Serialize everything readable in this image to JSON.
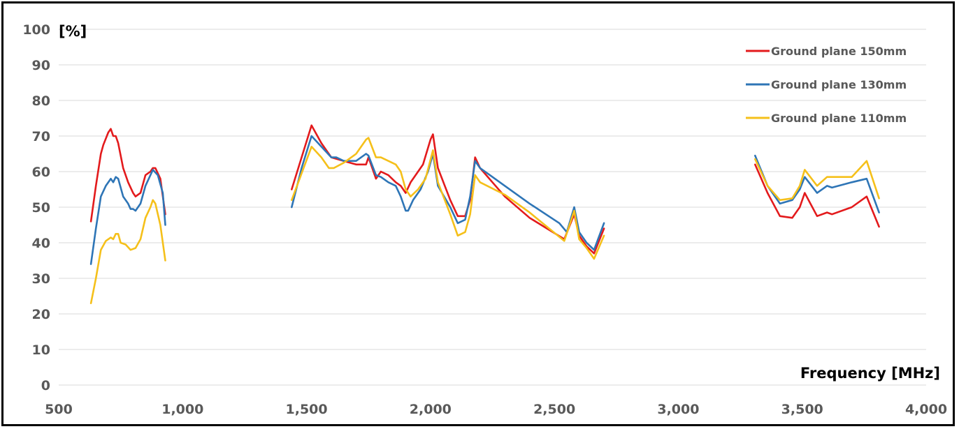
{
  "chart_data": {
    "type": "line",
    "title": "",
    "ylabel": "[%]",
    "xlabel": "Frequency  [MHz]",
    "xlim": [
      500,
      4000
    ],
    "ylim": [
      0,
      100
    ],
    "x_ticks": [
      500,
      1000,
      1500,
      2000,
      2500,
      3000,
      3500,
      4000
    ],
    "x_tick_labels": [
      "500",
      "1,000",
      "1,500",
      "2,000",
      "2,500",
      "3,000",
      "3,500",
      "4,000"
    ],
    "y_ticks": [
      0,
      10,
      20,
      30,
      40,
      50,
      60,
      70,
      80,
      90,
      100
    ],
    "y_tick_labels": [
      "0",
      "10",
      "20",
      "30",
      "40",
      "50",
      "60",
      "70",
      "80",
      "90",
      "100"
    ],
    "grid": "horizontal",
    "legend_position": "top-right",
    "series": [
      {
        "name": "Ground plane 150mm",
        "color": "#e31a1c",
        "segments": [
          [
            [
              630,
              46
            ],
            [
              650,
              56
            ],
            [
              670,
              65
            ],
            [
              680,
              67.5
            ],
            [
              700,
              71
            ],
            [
              710,
              72
            ],
            [
              720,
              70
            ],
            [
              730,
              70
            ],
            [
              740,
              68
            ],
            [
              760,
              61
            ],
            [
              780,
              57
            ],
            [
              800,
              54
            ],
            [
              810,
              53
            ],
            [
              830,
              54
            ],
            [
              850,
              59
            ],
            [
              870,
              60
            ],
            [
              880,
              61
            ],
            [
              890,
              61
            ],
            [
              910,
              58
            ],
            [
              930,
              48
            ]
          ],
          [
            [
              1440,
              55
            ],
            [
              1480,
              64
            ],
            [
              1520,
              73
            ],
            [
              1560,
              68
            ],
            [
              1600,
              64
            ],
            [
              1650,
              63
            ],
            [
              1700,
              62
            ],
            [
              1740,
              62
            ],
            [
              1750,
              64
            ],
            [
              1780,
              58
            ],
            [
              1800,
              60
            ],
            [
              1830,
              59
            ],
            [
              1860,
              57
            ],
            [
              1880,
              56
            ],
            [
              1900,
              54
            ],
            [
              1920,
              57
            ],
            [
              1950,
              60
            ],
            [
              1970,
              62
            ],
            [
              2000,
              69
            ],
            [
              2010,
              70.5
            ],
            [
              2030,
              61
            ],
            [
              2080,
              52
            ],
            [
              2110,
              47.5
            ],
            [
              2140,
              47.5
            ],
            [
              2160,
              52
            ],
            [
              2180,
              64
            ],
            [
              2200,
              61
            ],
            [
              2250,
              57
            ],
            [
              2300,
              53
            ],
            [
              2400,
              47
            ],
            [
              2540,
              41
            ],
            [
              2580,
              48
            ],
            [
              2600,
              42
            ],
            [
              2630,
              39
            ],
            [
              2660,
              37
            ],
            [
              2700,
              44
            ]
          ],
          [
            [
              3310,
              62
            ],
            [
              3360,
              54
            ],
            [
              3410,
              47.5
            ],
            [
              3460,
              47
            ],
            [
              3490,
              50
            ],
            [
              3510,
              54
            ],
            [
              3560,
              47.5
            ],
            [
              3600,
              48.5
            ],
            [
              3620,
              48
            ],
            [
              3700,
              50
            ],
            [
              3760,
              53
            ],
            [
              3810,
              44.5
            ]
          ]
        ]
      },
      {
        "name": "Ground plane 130mm",
        "color": "#2e75b6",
        "segments": [
          [
            [
              630,
              34
            ],
            [
              650,
              44
            ],
            [
              670,
              53
            ],
            [
              690,
              56
            ],
            [
              710,
              58
            ],
            [
              720,
              57
            ],
            [
              730,
              58.5
            ],
            [
              740,
              58
            ],
            [
              760,
              53
            ],
            [
              780,
              51
            ],
            [
              790,
              49.5
            ],
            [
              800,
              49.5
            ],
            [
              810,
              49
            ],
            [
              830,
              51
            ],
            [
              850,
              56
            ],
            [
              870,
              59
            ],
            [
              880,
              60.5
            ],
            [
              900,
              59
            ],
            [
              920,
              54
            ],
            [
              930,
              45
            ]
          ],
          [
            [
              1440,
              50
            ],
            [
              1480,
              61
            ],
            [
              1520,
              70
            ],
            [
              1560,
              67
            ],
            [
              1600,
              64
            ],
            [
              1620,
              64
            ],
            [
              1650,
              63
            ],
            [
              1700,
              63
            ],
            [
              1740,
              65
            ],
            [
              1750,
              64.5
            ],
            [
              1780,
              59
            ],
            [
              1800,
              58.5
            ],
            [
              1830,
              57
            ],
            [
              1860,
              56
            ],
            [
              1880,
              53
            ],
            [
              1900,
              49
            ],
            [
              1910,
              49
            ],
            [
              1930,
              52
            ],
            [
              1960,
              55
            ],
            [
              1990,
              60
            ],
            [
              2010,
              65
            ],
            [
              2030,
              56
            ],
            [
              2080,
              50
            ],
            [
              2110,
              45.5
            ],
            [
              2140,
              46.5
            ],
            [
              2160,
              53
            ],
            [
              2180,
              63
            ],
            [
              2200,
              61
            ],
            [
              2300,
              56
            ],
            [
              2400,
              51
            ],
            [
              2520,
              45.5
            ],
            [
              2550,
              43
            ],
            [
              2580,
              50
            ],
            [
              2600,
              43
            ],
            [
              2630,
              40
            ],
            [
              2660,
              38
            ],
            [
              2700,
              45.5
            ]
          ],
          [
            [
              3310,
              64.5
            ],
            [
              3360,
              56
            ],
            [
              3410,
              51
            ],
            [
              3460,
              52
            ],
            [
              3490,
              55
            ],
            [
              3510,
              58.5
            ],
            [
              3560,
              54
            ],
            [
              3600,
              56
            ],
            [
              3620,
              55.5
            ],
            [
              3700,
              57
            ],
            [
              3760,
              58
            ],
            [
              3810,
              48.5
            ]
          ]
        ]
      },
      {
        "name": "Ground plane 110mm",
        "color": "#f5c01a",
        "segments": [
          [
            [
              630,
              23
            ],
            [
              650,
              30
            ],
            [
              670,
              38
            ],
            [
              690,
              40.5
            ],
            [
              710,
              41.5
            ],
            [
              720,
              41
            ],
            [
              730,
              42.5
            ],
            [
              740,
              42.5
            ],
            [
              750,
              40
            ],
            [
              770,
              39.5
            ],
            [
              790,
              38
            ],
            [
              810,
              38.5
            ],
            [
              830,
              41
            ],
            [
              850,
              47
            ],
            [
              870,
              50
            ],
            [
              880,
              52
            ],
            [
              890,
              51
            ],
            [
              910,
              45
            ],
            [
              930,
              35
            ]
          ],
          [
            [
              1440,
              52
            ],
            [
              1480,
              59.5
            ],
            [
              1520,
              67
            ],
            [
              1560,
              64
            ],
            [
              1590,
              61
            ],
            [
              1610,
              61
            ],
            [
              1650,
              62.5
            ],
            [
              1700,
              65
            ],
            [
              1740,
              69
            ],
            [
              1750,
              69.5
            ],
            [
              1780,
              64
            ],
            [
              1800,
              64
            ],
            [
              1830,
              63
            ],
            [
              1860,
              62
            ],
            [
              1880,
              60
            ],
            [
              1900,
              55
            ],
            [
              1920,
              53
            ],
            [
              1950,
              55
            ],
            [
              1980,
              58
            ],
            [
              2010,
              66
            ],
            [
              2030,
              57
            ],
            [
              2080,
              48
            ],
            [
              2110,
              42
            ],
            [
              2140,
              43
            ],
            [
              2160,
              48
            ],
            [
              2180,
              59
            ],
            [
              2200,
              57
            ],
            [
              2300,
              53.5
            ],
            [
              2400,
              48.5
            ],
            [
              2540,
              40.5
            ],
            [
              2580,
              49
            ],
            [
              2600,
              41
            ],
            [
              2630,
              38.5
            ],
            [
              2660,
              35.5
            ],
            [
              2700,
              42
            ]
          ],
          [
            [
              3310,
              63.5
            ],
            [
              3360,
              56
            ],
            [
              3410,
              52
            ],
            [
              3460,
              52.5
            ],
            [
              3490,
              56
            ],
            [
              3510,
              60.5
            ],
            [
              3560,
              56
            ],
            [
              3600,
              58.5
            ],
            [
              3620,
              58.5
            ],
            [
              3700,
              58.5
            ],
            [
              3760,
              63
            ],
            [
              3810,
              52.5
            ]
          ]
        ]
      }
    ]
  }
}
